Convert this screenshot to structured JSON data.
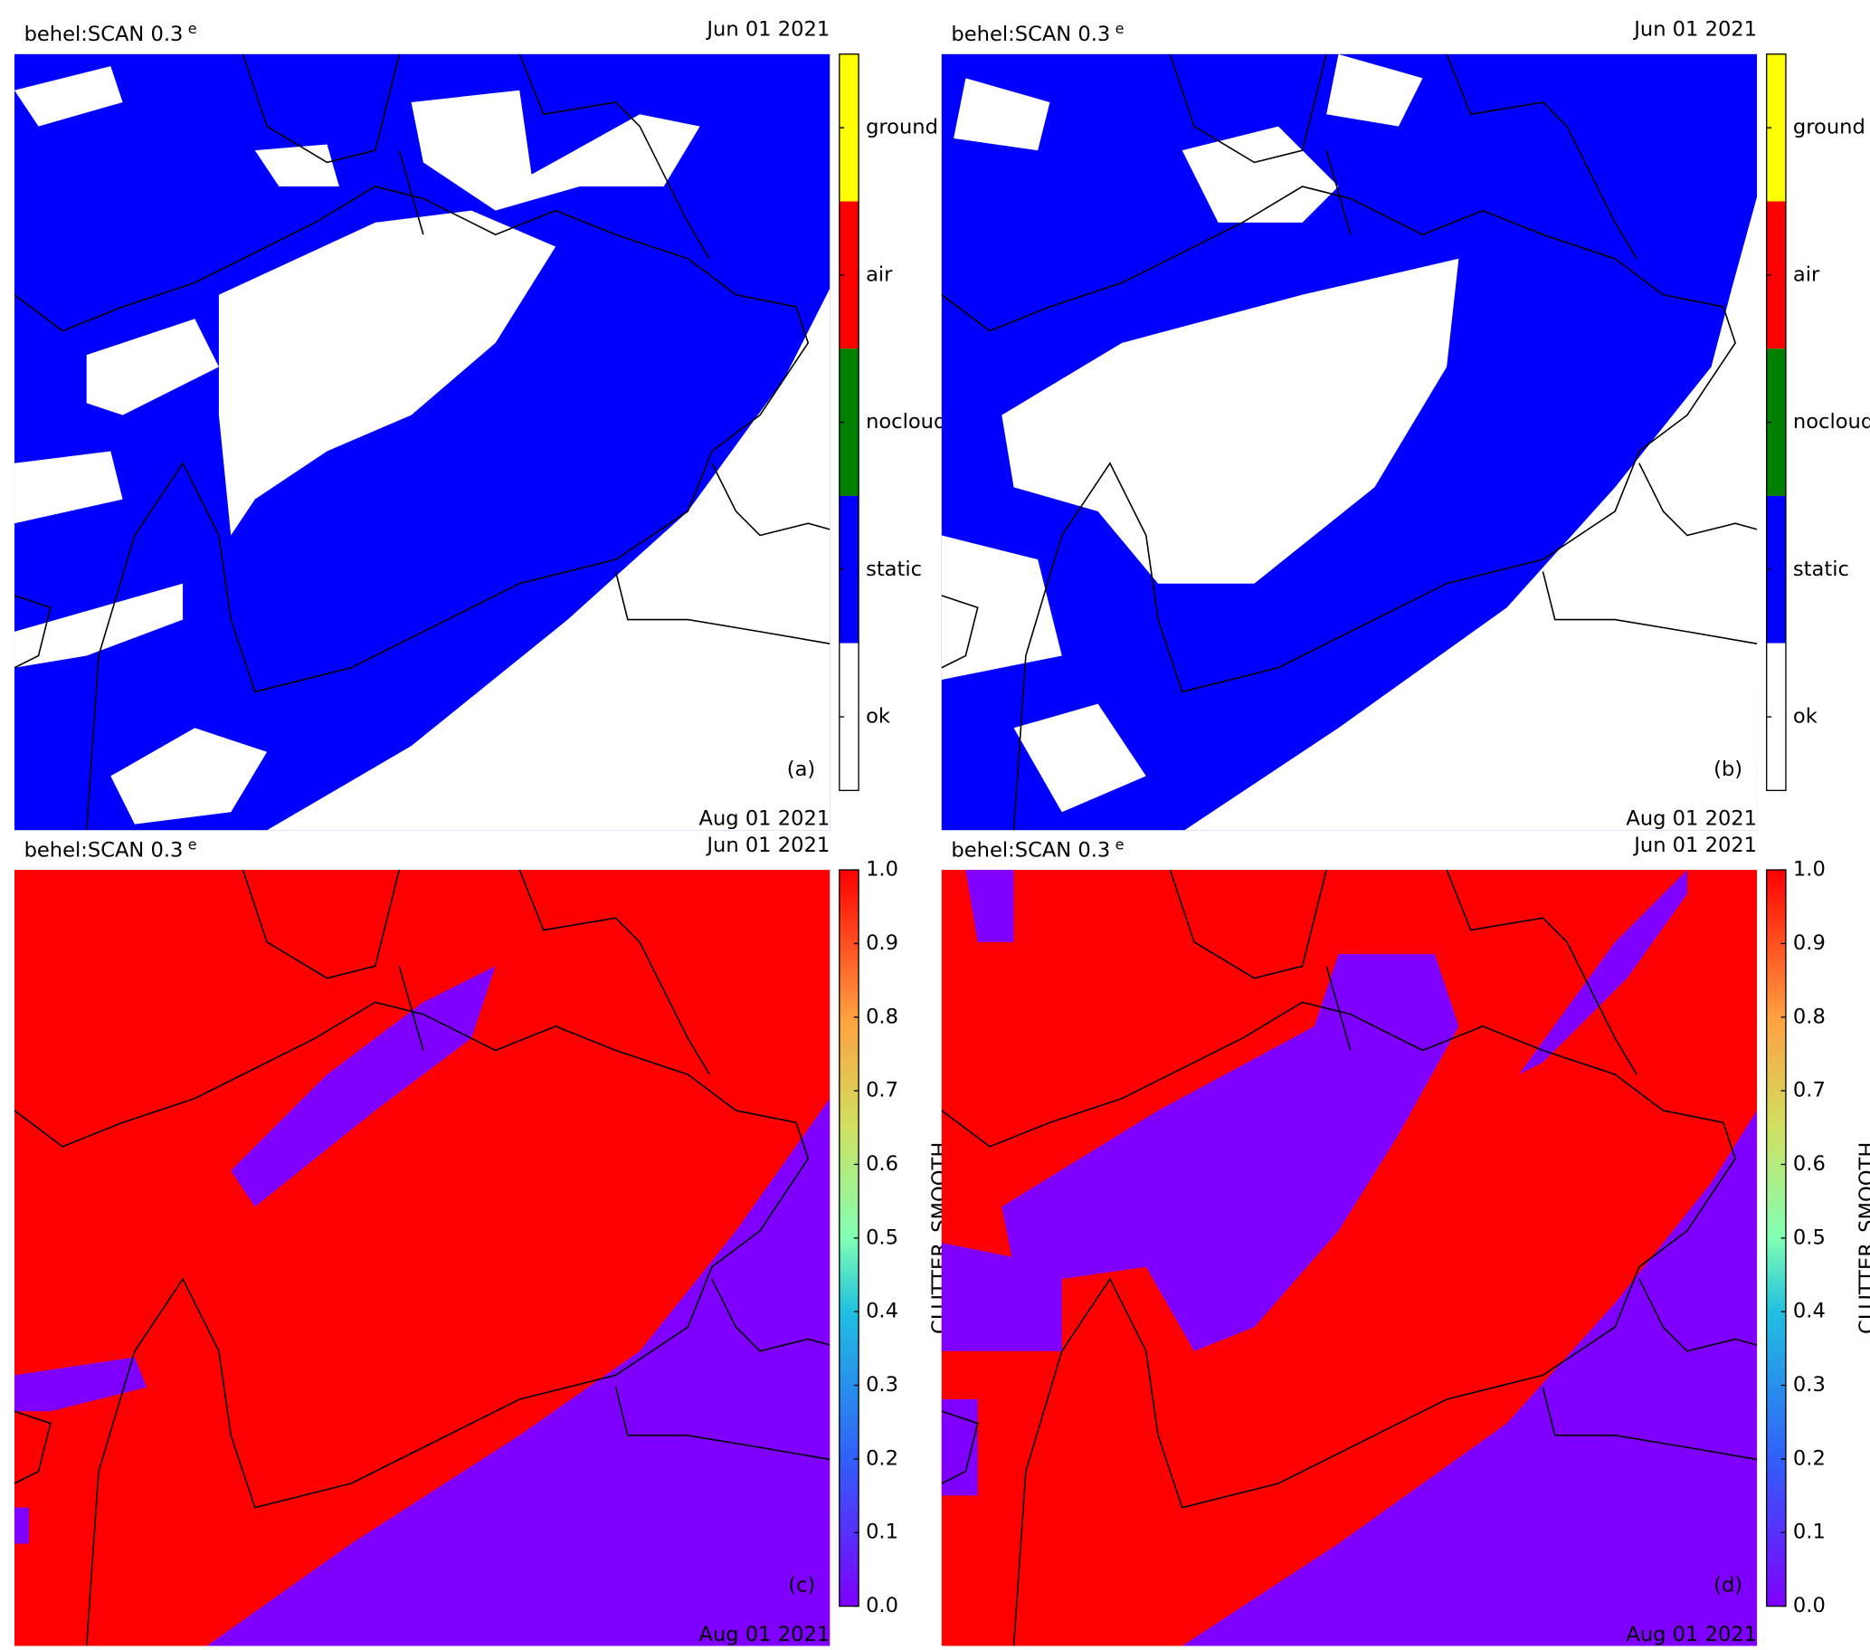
{
  "panels": [
    {
      "title": "behel:SCAN 0.3",
      "title_sup": "e",
      "date_top": "Jun 01 2021",
      "date_bottom": "Aug 01 2021",
      "label": "(a)",
      "colorbar": {
        "labels": [
          "ground",
          "air",
          "nocloud",
          "static",
          "ok"
        ]
      }
    },
    {
      "title": "behel:SCAN 0.3",
      "title_sup": "e",
      "date_top": "Jun 01 2021",
      "date_bottom": "Aug 01 2021",
      "label": "(b)",
      "colorbar": {
        "labels": [
          "ground",
          "air",
          "nocloud",
          "static",
          "ok"
        ]
      }
    },
    {
      "title": "behel:SCAN 0.3",
      "title_sup": "e",
      "date_top": "Jun 01 2021",
      "date_bottom": "Aug 01 2021",
      "label": "(c)",
      "colorbar": {
        "ticks": [
          "1.0",
          "0.9",
          "0.8",
          "0.7",
          "0.6",
          "0.5",
          "0.4",
          "0.3",
          "0.2",
          "0.1",
          "0.0"
        ],
        "axis_label": "CLUTTER_SMOOTH"
      }
    },
    {
      "title": "behel:SCAN 0.3",
      "title_sup": "e",
      "date_top": "Jun 01 2021",
      "date_bottom": "Aug 01 2021",
      "label": "(d)",
      "colorbar": {
        "ticks": [
          "1.0",
          "0.9",
          "0.8",
          "0.7",
          "0.6",
          "0.5",
          "0.4",
          "0.3",
          "0.2",
          "0.1",
          "0.0"
        ],
        "axis_label": "CLUTTER_SMOOTH"
      }
    }
  ]
}
